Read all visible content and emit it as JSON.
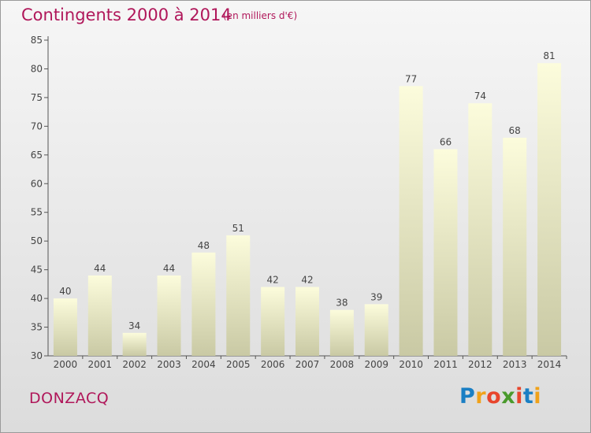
{
  "header": {
    "title": "Contingents 2000 à 2014",
    "subtitle": "(en milliers d'€)"
  },
  "footer": {
    "place": "DONZACQ",
    "logo": "Proxiti"
  },
  "colors": {
    "title": "#b0175a",
    "bar_top": "#fcfcdc",
    "bar_bottom": "#c9c9a4",
    "axis": "#555555",
    "label": "#444444"
  },
  "chart_data": {
    "type": "bar",
    "categories": [
      "2000",
      "2001",
      "2002",
      "2003",
      "2004",
      "2005",
      "2006",
      "2007",
      "2008",
      "2009",
      "2010",
      "2011",
      "2012",
      "2013",
      "2014"
    ],
    "values": [
      40,
      44,
      34,
      44,
      48,
      51,
      42,
      42,
      38,
      39,
      77,
      66,
      74,
      68,
      81
    ],
    "data_labels": [
      "40",
      "44",
      "34",
      "44",
      "48",
      "51",
      "42",
      "42",
      "38",
      "39",
      "77",
      "66",
      "74",
      "68",
      "81"
    ],
    "ylim": [
      30,
      85
    ],
    "yticks": [
      30,
      35,
      40,
      45,
      50,
      55,
      60,
      65,
      70,
      75,
      80,
      85
    ],
    "title": "Contingents 2000 à 2014",
    "xlabel": "",
    "ylabel": "",
    "grid": false,
    "legend": "none"
  }
}
